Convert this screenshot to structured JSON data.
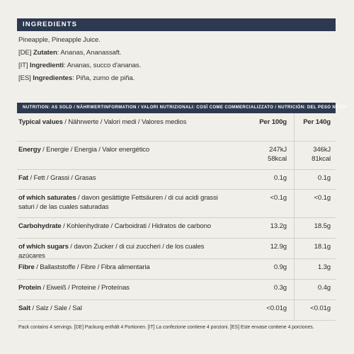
{
  "ingredients": {
    "heading": "INGREDIENTS",
    "lines": [
      {
        "prefix": "",
        "label": "",
        "text": "Pineapple, Pineapple Juice."
      },
      {
        "prefix": "[DE] ",
        "label": "Zutaten",
        "text": ": Ananas, Ananassaft."
      },
      {
        "prefix": "[IT] ",
        "label": "Ingredienti",
        "text": ": Ananas, succo d'ananas."
      },
      {
        "prefix": "[ES] ",
        "label": "Ingredientes",
        "text": ": Piña, zumo de piña."
      }
    ]
  },
  "nutrition": {
    "heading": "NUTRITION: AS SOLD / NÄHRWERTINFORMATION / VALORI NUTRIZIONALI: COSÌ COME COMMERCIALIZZATO / NUTRICIÓN: DEL PESO NETO:",
    "header": {
      "label_bold": "Typical values",
      "label_rest": " / Nährwerte / Valori medi / Valores medios",
      "col1": "Per 100g",
      "col2": "Per 140g"
    },
    "rows": [
      {
        "bold": "Energy",
        "rest": " / Energie / Energia / Valor energético",
        "v1a": "247kJ",
        "v1b": "58kcal",
        "v2a": "346kJ",
        "v2b": "81kcal"
      },
      {
        "bold": "Fat",
        "rest": " / Fett / Grassi / Grasas",
        "v1a": "0.1g",
        "v1b": "",
        "v2a": "0.1g",
        "v2b": ""
      },
      {
        "bold": "of which saturates",
        "rest": " / davon gesättigte Fettsäuren / di cui acidi grassi saturi / de las cuales saturadas",
        "v1a": "<0.1g",
        "v1b": "",
        "v2a": "<0.1g",
        "v2b": ""
      },
      {
        "bold": "Carbohydrate",
        "rest": " / Kohlenhydrate / Carboidrati / Hidratos de carbono",
        "v1a": "13.2g",
        "v1b": "",
        "v2a": "18.5g",
        "v2b": ""
      },
      {
        "bold": "of which sugars",
        "rest": " / davon Zucker / di cui zuccheri / de los cuales azúcares",
        "v1a": "12.9g",
        "v1b": "",
        "v2a": "18.1g",
        "v2b": ""
      },
      {
        "bold": "Fibre",
        "rest": " / Ballaststoffe / Fibre / Fibra alimentaria",
        "v1a": "0.9g",
        "v1b": "",
        "v2a": "1.3g",
        "v2b": ""
      },
      {
        "bold": "Protein",
        "rest": " / Eiweiß / Proteine / Proteínas",
        "v1a": "0.3g",
        "v1b": "",
        "v2a": "0.4g",
        "v2b": ""
      },
      {
        "bold": "Salt",
        "rest": " / Salz / Sale / Sal",
        "v1a": "<0.01g",
        "v1b": "",
        "v2a": "<0.01g",
        "v2b": ""
      }
    ],
    "footer": "Pack contains 4 servings. [DE] Packung enthält 4 Portionen. [IT] La confezione contiene 4 porzioni. [ES] Este envase contiene 4 porciones."
  }
}
